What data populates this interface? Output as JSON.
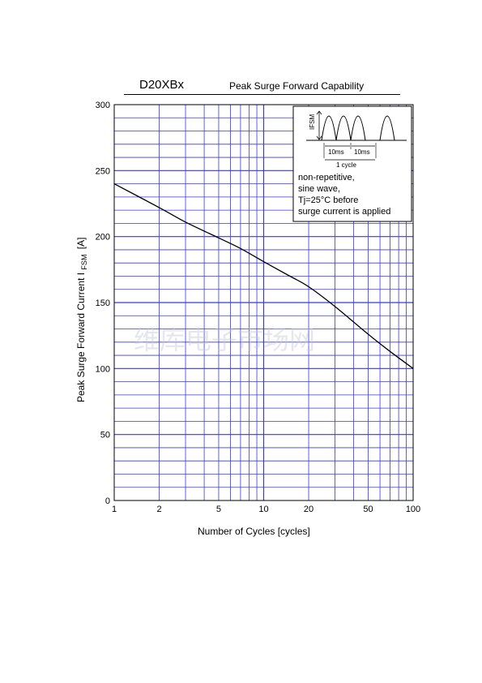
{
  "header": {
    "part_number": "D20XBx",
    "title": "Peak Surge Forward Capability"
  },
  "watermark": "维库电子市场网",
  "inset": {
    "ifsm_label": "IFSM",
    "half_period_1": "10ms",
    "half_period_2": "10ms",
    "cycle_label": "1 cycle",
    "notes": [
      "non-repetitive,",
      "sine wave,",
      "Tj=25°C before",
      "surge current is applied"
    ]
  },
  "colors": {
    "grid": "#3a3ad8",
    "curve": "#000000",
    "frame": "#000000"
  },
  "chart_data": {
    "type": "line",
    "xlabel": "Number of Cycles  [cycles]",
    "ylabel_main": "Peak Surge Forward Current",
    "ylabel_symbol": "I",
    "ylabel_subscript": "FSM",
    "ylabel_unit": "[A]",
    "x_scale": "log",
    "xlim": [
      1,
      100
    ],
    "ylim": [
      0,
      300
    ],
    "x_ticks": [
      1,
      2,
      5,
      10,
      20,
      50,
      100
    ],
    "y_ticks": [
      0,
      50,
      100,
      150,
      200,
      250,
      300
    ],
    "y_minor_step": 10,
    "grid": true,
    "legend": "none",
    "series": [
      {
        "x": [
          1,
          2,
          3,
          5,
          7,
          10,
          15,
          20,
          30,
          50,
          70,
          100
        ],
        "y": [
          240,
          222,
          211,
          199,
          191,
          181,
          170,
          162,
          147,
          126,
          113,
          100
        ]
      }
    ]
  }
}
